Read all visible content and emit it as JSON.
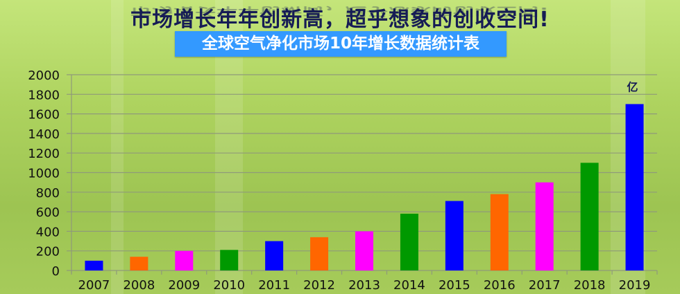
{
  "header": {
    "title": "市场增长年年创新高，超乎想象的创收空间!",
    "subtitle": "全球空气净化市场10年增长数据统计表"
  },
  "chart_data": {
    "type": "bar",
    "title": "全球空气净化市场10年增长数据统计表",
    "unit_label": "亿",
    "categories": [
      "2007",
      "2008",
      "2009",
      "2010",
      "2011",
      "2012",
      "2013",
      "2014",
      "2015",
      "2016",
      "2017",
      "2018",
      "2019"
    ],
    "values": [
      100,
      140,
      200,
      210,
      300,
      340,
      400,
      580,
      710,
      780,
      900,
      1100,
      1700
    ],
    "bar_colors": [
      "#0000ff",
      "#ff6600",
      "#ff00ff",
      "#009900",
      "#0000ff",
      "#ff6600",
      "#ff00ff",
      "#009900",
      "#0000ff",
      "#ff6600",
      "#ff00ff",
      "#009900",
      "#0000ff"
    ],
    "ylim": [
      0,
      2000
    ],
    "yticks": [
      0,
      200,
      400,
      600,
      800,
      1000,
      1200,
      1400,
      1600,
      1800,
      2000
    ],
    "grid": true,
    "xlabel": "",
    "ylabel": ""
  },
  "colors": {
    "title": "#161c55",
    "subtitle_bg": "#3399ff",
    "grid": "#8f9a7a"
  }
}
